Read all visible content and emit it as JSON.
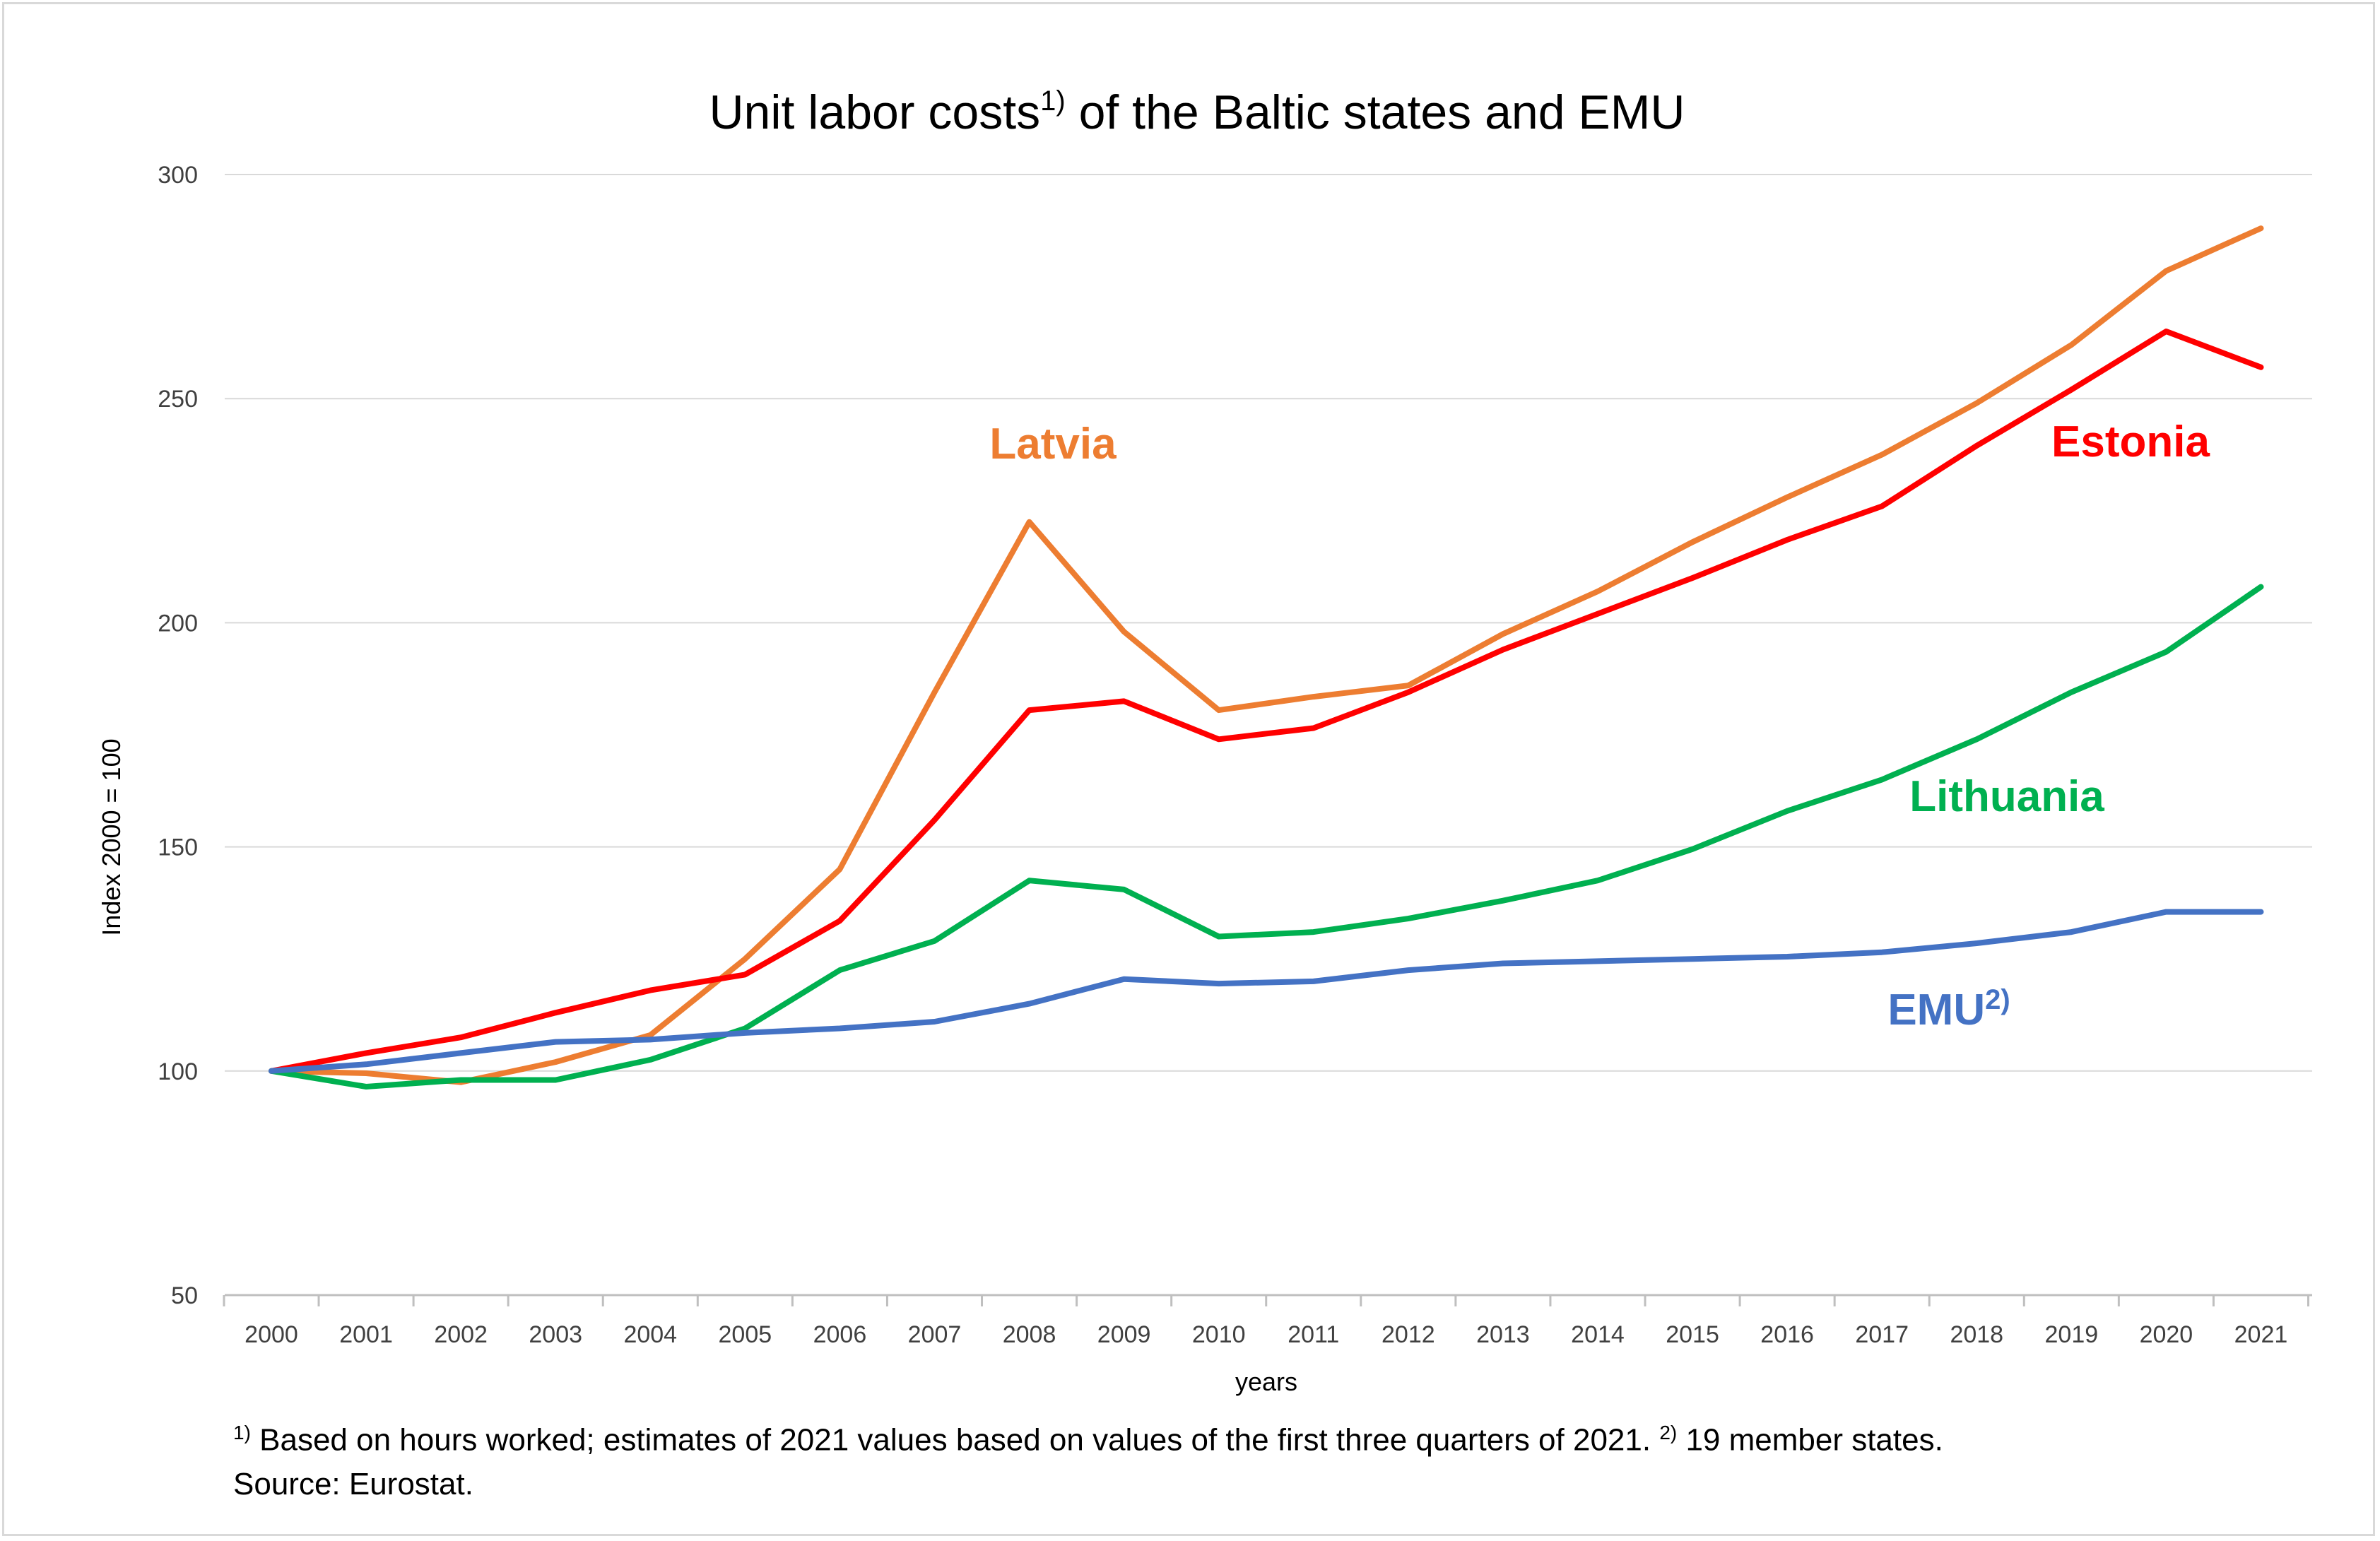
{
  "chart_data": {
    "type": "line",
    "title": "Unit labor costs",
    "title_superscript": "1)",
    "title_suffix": " of the Baltic states and EMU",
    "xlabel": "years",
    "ylabel": "Index 2000 = 100",
    "ylim": [
      50,
      300
    ],
    "yticks": [
      "50",
      "100",
      "150",
      "200",
      "250",
      "300"
    ],
    "grid": true,
    "categories": [
      "2000",
      "2001",
      "2002",
      "2003",
      "2004",
      "2005",
      "2006",
      "2007",
      "2008",
      "2009",
      "2010",
      "2011",
      "2012",
      "2013",
      "2014",
      "2015",
      "2016",
      "2017",
      "2018",
      "2019",
      "2020",
      "2021"
    ],
    "series": [
      {
        "name": "Latvia",
        "name_superscript": "",
        "color": "#ED7D31",
        "values": [
          100,
          99.5,
          97.5,
          102,
          108,
          125,
          145,
          184.5,
          222.5,
          198,
          180.5,
          183.5,
          186,
          197.5,
          207,
          218,
          228,
          237.5,
          249,
          262,
          278.5,
          288
        ]
      },
      {
        "name": "Estonia",
        "name_superscript": "",
        "color": "#FF0000",
        "values": [
          100,
          104,
          107.5,
          113,
          118,
          121.5,
          133.5,
          156,
          180.5,
          182.5,
          174,
          176.5,
          184.5,
          194,
          202,
          210,
          218.5,
          226,
          239.5,
          252,
          265,
          257
        ]
      },
      {
        "name": "Lithuania",
        "name_superscript": "",
        "color": "#00B050",
        "values": [
          100,
          96.5,
          98,
          98,
          102.5,
          109.5,
          122.5,
          129,
          142.5,
          140.5,
          130,
          131,
          134,
          138,
          142.5,
          149.5,
          158,
          165,
          174,
          184.5,
          193.5,
          208
        ]
      },
      {
        "name": "EMU",
        "name_superscript": "2)",
        "color": "#4472C4",
        "values": [
          100,
          101.5,
          104,
          106.5,
          107,
          108.5,
          109.5,
          111,
          115,
          120.5,
          119.5,
          120,
          122.5,
          124,
          124.5,
          125,
          125.5,
          126.5,
          128.5,
          131,
          135.5,
          135.5
        ]
      }
    ]
  },
  "footnote": {
    "sup1": "1)",
    "text1": " Based on hours worked; estimates of 2021 values based on values of the first three quarters of 2021. ",
    "sup2": "2)",
    "text2": " 19 member states.",
    "source": "Source: Eurostat."
  }
}
